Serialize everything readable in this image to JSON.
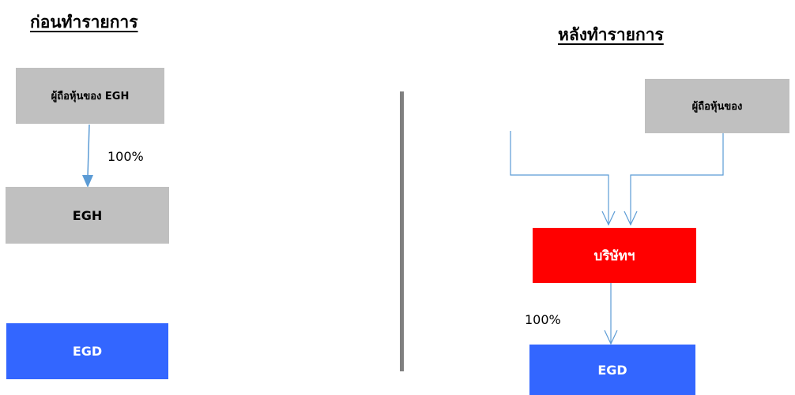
{
  "before": {
    "heading": "ก่อนทำรายการ",
    "shareholders_box": "ผู้ถือหุ้นของ EGH",
    "egh_box": "EGH",
    "egd_box": "EGD",
    "ownership_label": "100%"
  },
  "after": {
    "heading": "หลังทำรายการ",
    "shareholders_box": "ผู้ถือหุ้นของ",
    "company_box": "บริษัทฯ",
    "egd_box": "EGD",
    "ownership_label": "100%"
  },
  "colors": {
    "gray_box": "#c0c0c0",
    "company_red": "#ff0000",
    "egd_blue": "#3366ff",
    "arrow_blue": "#5b9bd5",
    "divider": "#808080"
  }
}
